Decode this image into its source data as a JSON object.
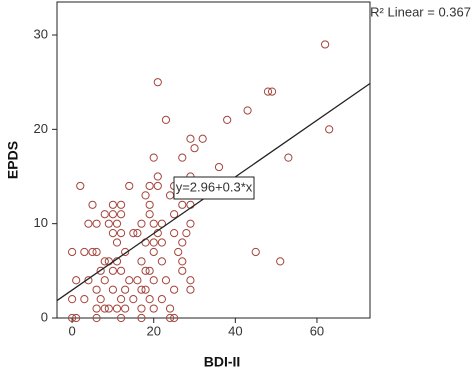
{
  "chart_data": {
    "type": "scatter",
    "x_label": "BDI-II",
    "y_label": "EPDS",
    "r2_label": "R² Linear = 0.367",
    "fit": {
      "intercept": 2.96,
      "slope": 0.3,
      "label": "y=2.96+0.3*x"
    },
    "color": "#a3443c",
    "x": [
      62,
      63,
      48,
      49,
      43,
      38,
      21,
      23,
      29,
      32,
      30,
      27,
      20,
      53,
      36,
      21,
      29,
      25,
      21,
      19,
      14,
      2,
      18,
      24,
      28,
      30,
      19,
      27,
      29,
      5,
      10,
      12,
      25,
      19,
      10,
      12,
      8,
      4,
      6,
      9,
      11,
      17,
      20,
      22,
      29,
      25,
      15,
      21,
      12,
      16,
      10,
      28,
      11,
      18,
      20,
      22,
      27,
      0,
      5,
      6,
      20,
      26,
      45,
      13,
      3,
      9,
      8,
      11,
      17,
      22,
      27,
      51,
      7,
      10,
      12,
      18,
      19,
      27,
      1,
      4,
      8,
      14,
      16,
      20,
      23,
      29,
      6,
      10,
      13,
      17,
      25,
      7,
      12,
      15,
      19,
      22,
      0,
      3,
      29,
      6,
      8,
      11,
      13,
      17,
      20,
      24,
      0,
      1,
      6,
      12,
      17,
      24,
      25,
      9,
      18
    ],
    "y": [
      29,
      20,
      24,
      24,
      22,
      21,
      25,
      21,
      19,
      19,
      18,
      17,
      17,
      17,
      16,
      15,
      15,
      14,
      14,
      14,
      14,
      14,
      13,
      13,
      13,
      13,
      12,
      12,
      12,
      12,
      12,
      12,
      11,
      11,
      11,
      11,
      11,
      10,
      10,
      10,
      10,
      10,
      10,
      10,
      10,
      9,
      9,
      9,
      9,
      9,
      9,
      9,
      8,
      8,
      8,
      8,
      8,
      7,
      7,
      7,
      7,
      7,
      7,
      7,
      7,
      6,
      6,
      6,
      6,
      6,
      6,
      6,
      5,
      5,
      5,
      5,
      5,
      5,
      4,
      4,
      4,
      4,
      4,
      4,
      4,
      4,
      3,
      3,
      3,
      3,
      3,
      2,
      2,
      2,
      2,
      2,
      2,
      2,
      3,
      1,
      1,
      1,
      1,
      1,
      1,
      1,
      0,
      0,
      0,
      0,
      0,
      0,
      0,
      1,
      3
    ],
    "xlim": [
      -3.7,
      73
    ],
    "ylim": [
      0,
      33.5
    ],
    "xticks": [
      0,
      20,
      40,
      60
    ],
    "yticks": [
      0,
      10,
      20,
      30
    ]
  }
}
